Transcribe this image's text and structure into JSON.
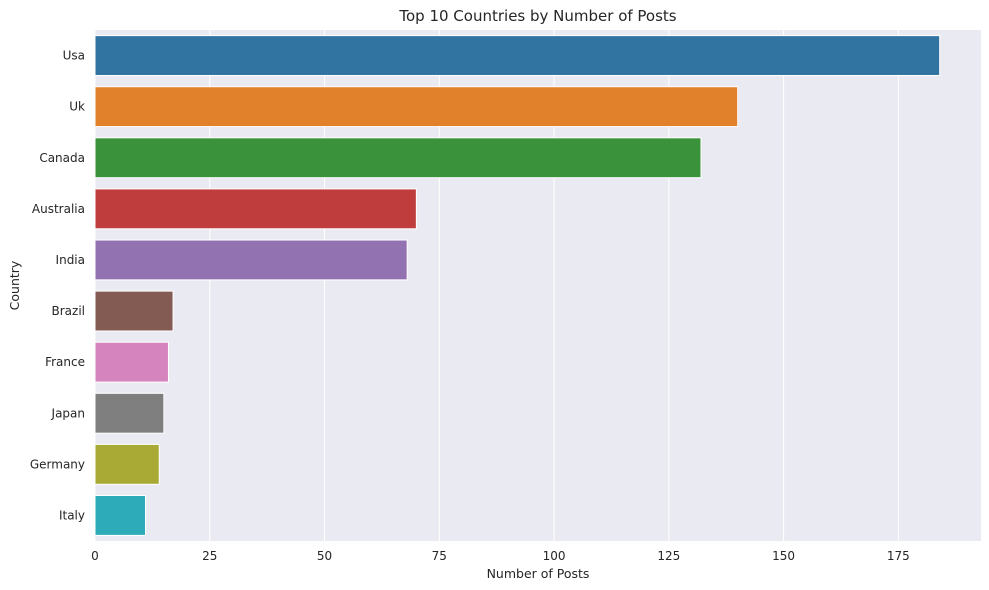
{
  "chart_data": {
    "type": "bar",
    "orientation": "horizontal",
    "title": "Top 10 Countries by Number of Posts",
    "xlabel": "Number of Posts",
    "ylabel": "Country",
    "categories": [
      "Usa",
      "Uk",
      "Canada",
      "Australia",
      "India",
      "Brazil",
      "France",
      "Japan",
      "Germany",
      "Italy"
    ],
    "values": [
      184,
      140,
      132,
      70,
      68,
      17,
      16,
      15,
      14,
      11
    ],
    "colors": [
      "#3274a1",
      "#e1812c",
      "#3a923a",
      "#c03d3e",
      "#9372b2",
      "#845b53",
      "#d684bd",
      "#7f7f7f",
      "#a9aa35",
      "#2eabb8"
    ],
    "xlim": [
      0,
      193
    ],
    "xticks": [
      0,
      25,
      50,
      75,
      100,
      125,
      150,
      175
    ],
    "grid": true,
    "background": "#eaeaf2"
  }
}
